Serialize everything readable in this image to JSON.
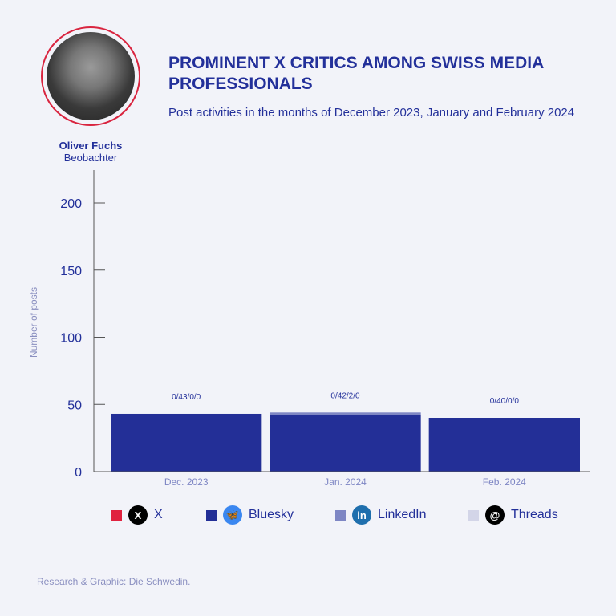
{
  "header": {
    "title": "PROMINENT X CRITICS AMONG SWISS MEDIA PROFESSIONALS",
    "subtitle": "Post activities in the months of December 2023, January and February 2024"
  },
  "person": {
    "name": "Oliver Fuchs",
    "role": "Beobachter"
  },
  "credit": "Research & Graphic: Die Schwedin.",
  "chart_data": {
    "type": "bar",
    "stacked": true,
    "categories": [
      "Dec. 2023",
      "Jan. 2024",
      "Feb. 2024"
    ],
    "series": [
      {
        "name": "X",
        "color": "#e0223f",
        "values": [
          0,
          0,
          0
        ]
      },
      {
        "name": "Bluesky",
        "color": "#232f97",
        "values": [
          43,
          42,
          40
        ]
      },
      {
        "name": "LinkedIn",
        "color": "#7e86c4",
        "values": [
          0,
          2,
          0
        ]
      },
      {
        "name": "Threads",
        "color": "#d3d5e8",
        "values": [
          0,
          0,
          0
        ]
      }
    ],
    "data_labels": [
      "0/43/0/0",
      "0/42/2/0",
      "0/40/0/0"
    ],
    "ylabel": "Number of posts",
    "ylim": [
      0,
      220
    ],
    "yticks": [
      0,
      50,
      100,
      150,
      200
    ],
    "legend": "bottom"
  }
}
